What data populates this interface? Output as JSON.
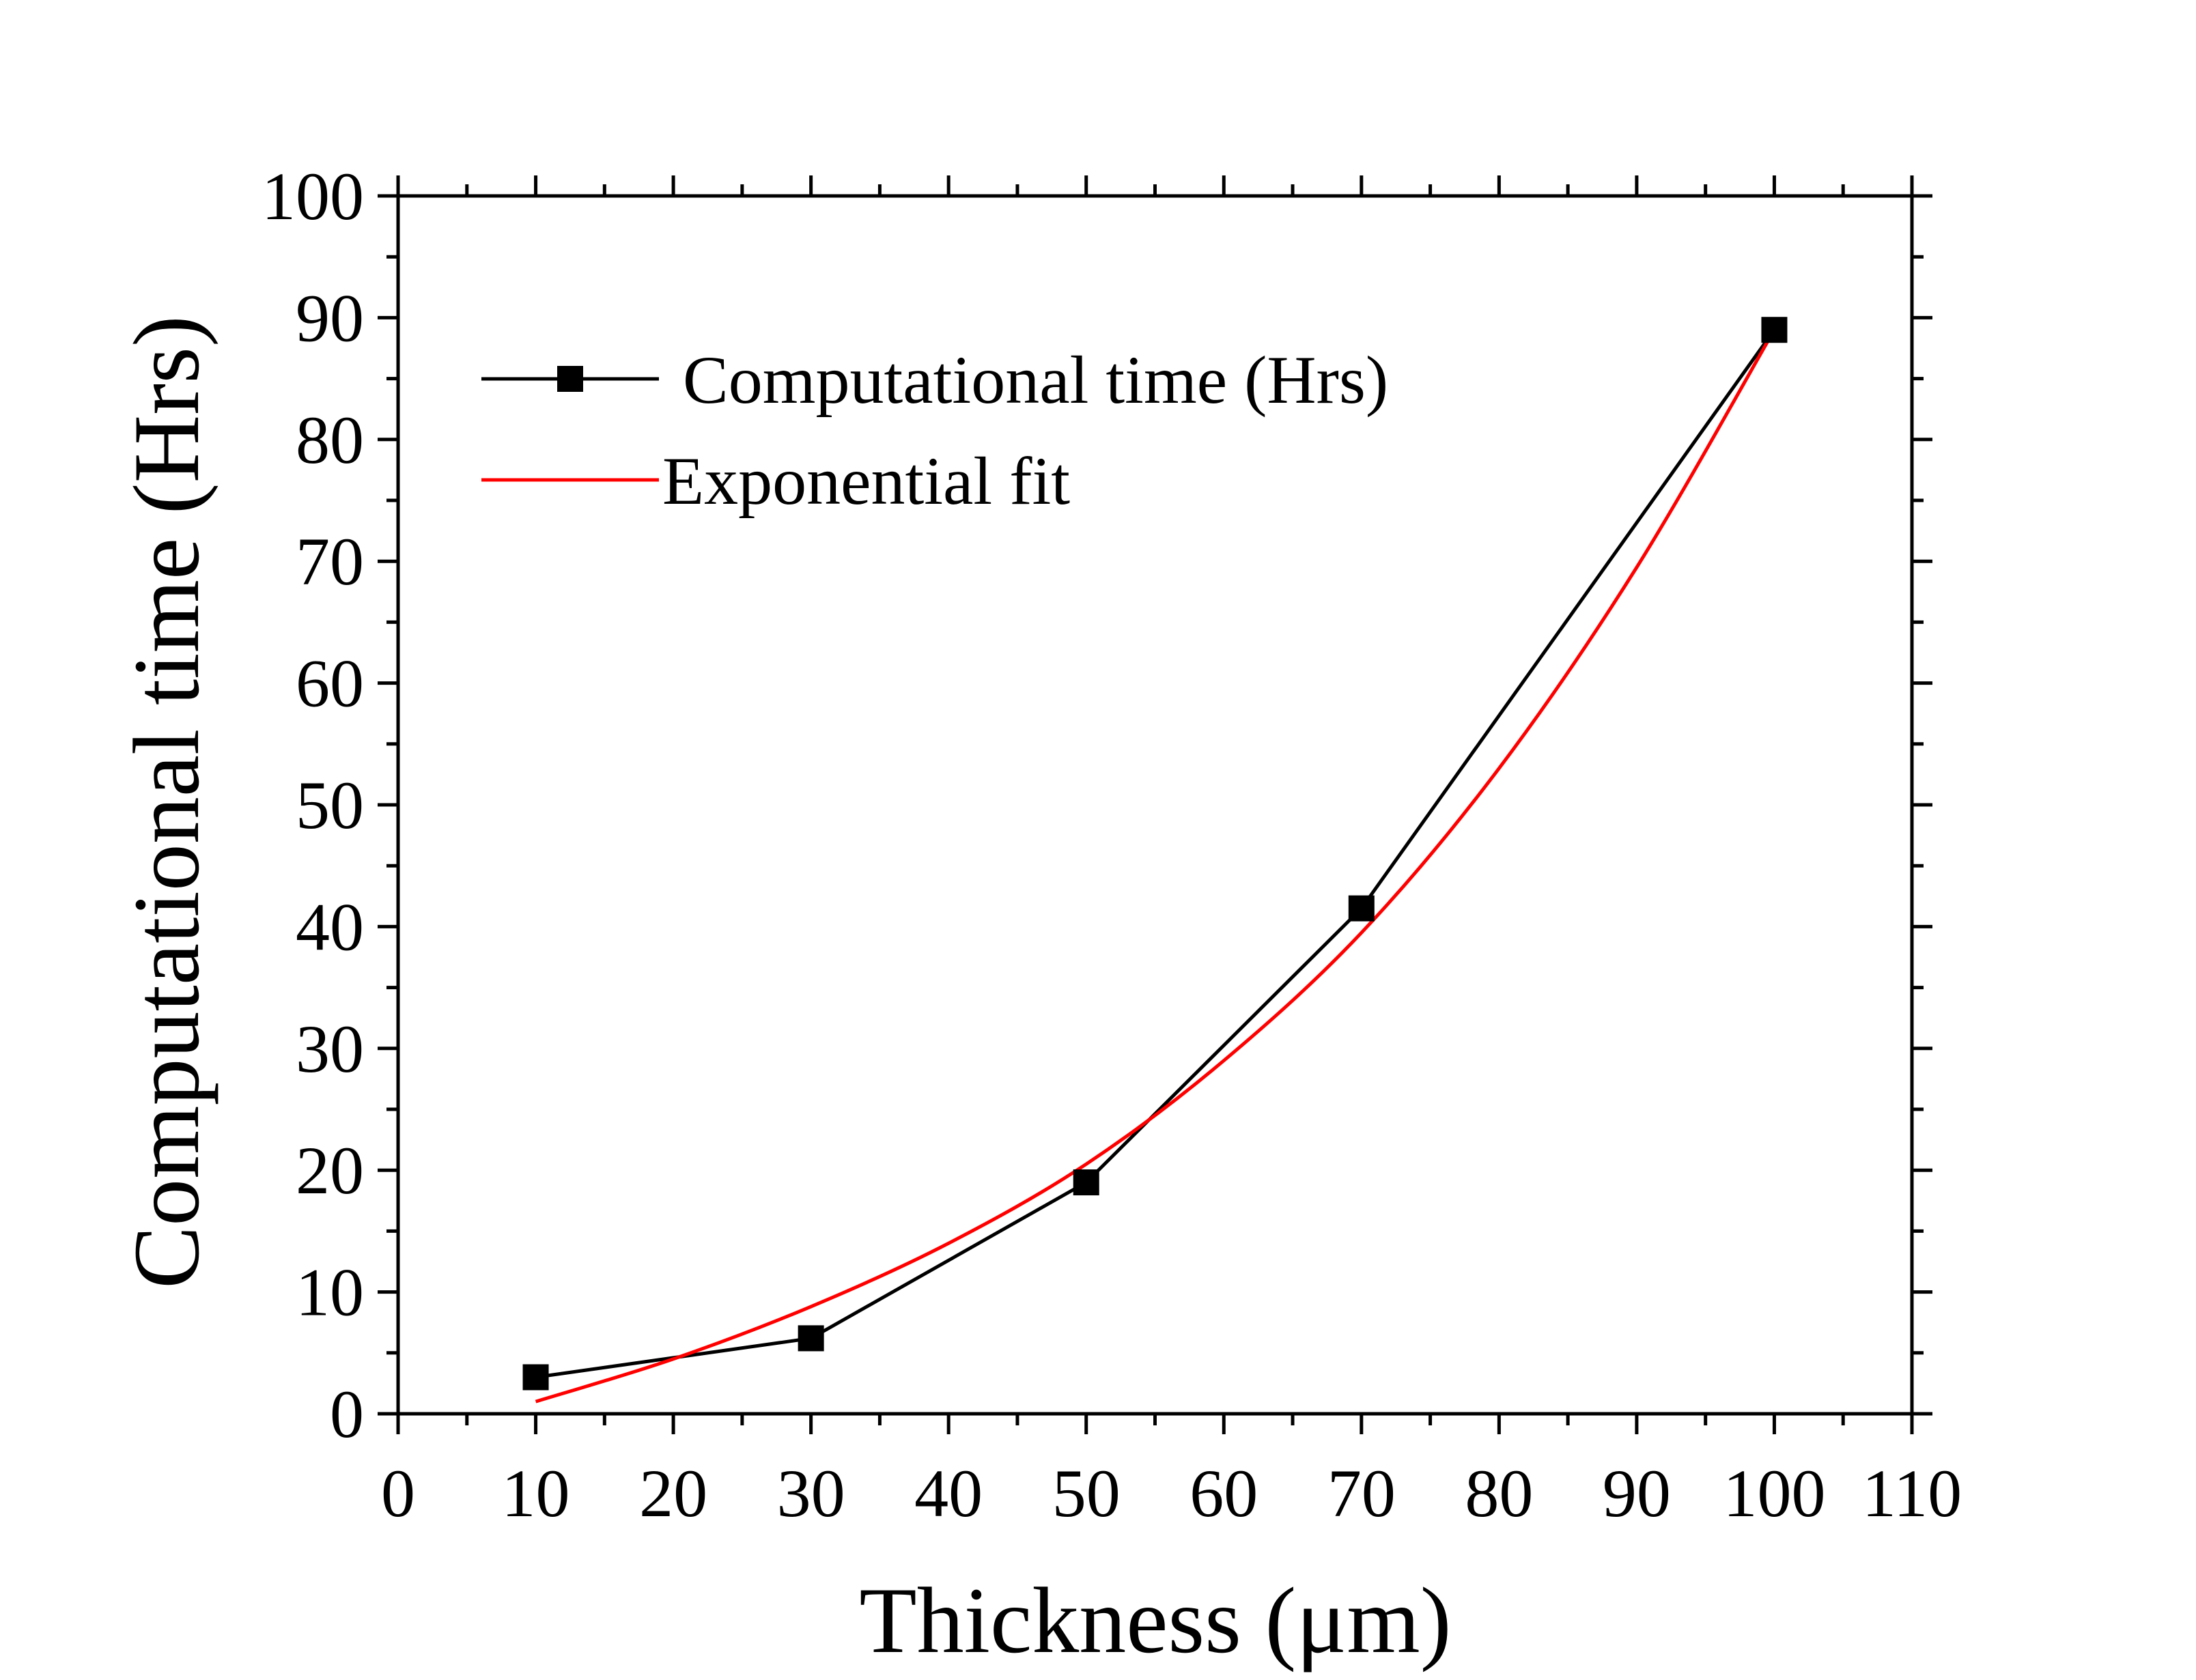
{
  "chart_data": {
    "type": "line",
    "title": "",
    "xlabel": "Thickness (μm)",
    "ylabel": "Computational time (Hrs)",
    "xlim": [
      0,
      110
    ],
    "ylim": [
      0,
      100
    ],
    "x_ticks": [
      0,
      10,
      20,
      30,
      40,
      50,
      60,
      70,
      80,
      90,
      100,
      110
    ],
    "y_ticks": [
      0,
      10,
      20,
      30,
      40,
      50,
      60,
      70,
      80,
      90,
      100
    ],
    "x_minor_step": 5,
    "y_minor_step": 5,
    "grid": false,
    "legend_position": "top-left",
    "series": [
      {
        "name": "Computational time (Hrs)",
        "style": "line+square-markers",
        "color": "#000000",
        "x": [
          10,
          30,
          50,
          70,
          100
        ],
        "y": [
          3,
          6.2,
          19,
          41.5,
          89
        ]
      },
      {
        "name": "Exponential fit",
        "style": "line",
        "color": "#ff0000",
        "x": [
          10,
          20,
          30,
          40,
          50,
          60,
          70,
          80,
          90,
          100
        ],
        "y": [
          1,
          4.5,
          8.8,
          14,
          20.5,
          29,
          39.5,
          53,
          69.5,
          89
        ]
      }
    ]
  }
}
